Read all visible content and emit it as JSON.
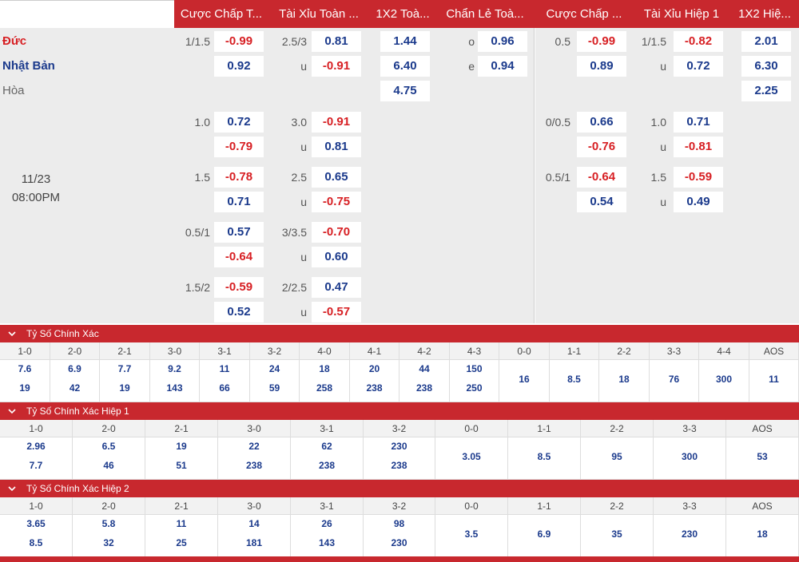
{
  "header": {
    "left": [
      "Cược Chấp T...",
      "Tài Xỉu Toàn ...",
      "1X2 Toà...",
      "Chẩn Lẻ Toà..."
    ],
    "right": [
      "Cược Chấp ...",
      "Tài Xỉu Hiệp 1",
      "1X2 Hiệ..."
    ]
  },
  "teams": {
    "home": "Đức",
    "away": "Nhật Bản",
    "draw": "Hòa"
  },
  "match": {
    "date": "11/23",
    "time": "08:00PM"
  },
  "full_time": {
    "main": {
      "hdp_line": "1/1.5",
      "hdp_home": "-0.99",
      "hdp_away": "0.92",
      "ou_line": "2.5/3",
      "ou_over": "0.81",
      "ou_u": "u",
      "ou_under": "-0.91",
      "x12_home": "1.44",
      "x12_away": "6.40",
      "x12_draw": "4.75",
      "oe_o": "o",
      "oe_odd": "0.96",
      "oe_e": "e",
      "oe_even": "0.94"
    },
    "alt": [
      {
        "hdp_line": "1.0",
        "hdp_home": "0.72",
        "hdp_away": "-0.79",
        "ou_line": "3.0",
        "ou_over": "-0.91",
        "ou_u": "u",
        "ou_under": "0.81"
      },
      {
        "hdp_line": "1.5",
        "hdp_home": "-0.78",
        "hdp_away": "0.71",
        "ou_line": "2.5",
        "ou_over": "0.65",
        "ou_u": "u",
        "ou_under": "-0.75"
      },
      {
        "hdp_line": "0.5/1",
        "hdp_home": "0.57",
        "hdp_away": "-0.64",
        "ou_line": "3/3.5",
        "ou_over": "-0.70",
        "ou_u": "u",
        "ou_under": "0.60"
      },
      {
        "hdp_line": "1.5/2",
        "hdp_home": "-0.59",
        "hdp_away": "0.52",
        "ou_line": "2/2.5",
        "ou_over": "0.47",
        "ou_u": "u",
        "ou_under": "-0.57"
      }
    ]
  },
  "first_half": {
    "main": {
      "hdp_line": "0.5",
      "hdp_home": "-0.99",
      "hdp_away": "0.89",
      "ou_line": "1/1.5",
      "ou_over": "-0.82",
      "ou_u": "u",
      "ou_under": "0.72",
      "x12_home": "2.01",
      "x12_away": "6.30",
      "x12_draw": "2.25"
    },
    "alt": [
      {
        "hdp_line": "0/0.5",
        "hdp_home": "0.66",
        "hdp_away": "-0.76",
        "ou_line": "1.0",
        "ou_over": "0.71",
        "ou_u": "u",
        "ou_under": "-0.81"
      },
      {
        "hdp_line": "0.5/1",
        "hdp_home": "-0.64",
        "hdp_away": "0.54",
        "ou_line": "1.5",
        "ou_over": "-0.59",
        "ou_u": "u",
        "ou_under": "0.49"
      }
    ]
  },
  "sections": [
    {
      "title": "Tỷ Số Chính Xác",
      "cols": [
        {
          "score": "1-0",
          "v": [
            "7.6",
            "19"
          ]
        },
        {
          "score": "2-0",
          "v": [
            "6.9",
            "42"
          ]
        },
        {
          "score": "2-1",
          "v": [
            "7.7",
            "19"
          ]
        },
        {
          "score": "3-0",
          "v": [
            "9.2",
            "143"
          ]
        },
        {
          "score": "3-1",
          "v": [
            "11",
            "66"
          ]
        },
        {
          "score": "3-2",
          "v": [
            "24",
            "59"
          ]
        },
        {
          "score": "4-0",
          "v": [
            "18",
            "258"
          ]
        },
        {
          "score": "4-1",
          "v": [
            "20",
            "238"
          ]
        },
        {
          "score": "4-2",
          "v": [
            "44",
            "238"
          ]
        },
        {
          "score": "4-3",
          "v": [
            "150",
            "250"
          ]
        },
        {
          "score": "0-0",
          "v": [
            "16"
          ]
        },
        {
          "score": "1-1",
          "v": [
            "8.5"
          ]
        },
        {
          "score": "2-2",
          "v": [
            "18"
          ]
        },
        {
          "score": "3-3",
          "v": [
            "76"
          ]
        },
        {
          "score": "4-4",
          "v": [
            "300"
          ]
        },
        {
          "score": "AOS",
          "v": [
            "11"
          ]
        }
      ]
    },
    {
      "title": "Tỷ Số Chính Xác Hiệp 1",
      "cols": [
        {
          "score": "1-0",
          "v": [
            "2.96",
            "7.7"
          ]
        },
        {
          "score": "2-0",
          "v": [
            "6.5",
            "46"
          ]
        },
        {
          "score": "2-1",
          "v": [
            "19",
            "51"
          ]
        },
        {
          "score": "3-0",
          "v": [
            "22",
            "238"
          ]
        },
        {
          "score": "3-1",
          "v": [
            "62",
            "238"
          ]
        },
        {
          "score": "3-2",
          "v": [
            "230",
            "238"
          ]
        },
        {
          "score": "0-0",
          "v": [
            "3.05"
          ]
        },
        {
          "score": "1-1",
          "v": [
            "8.5"
          ]
        },
        {
          "score": "2-2",
          "v": [
            "95"
          ]
        },
        {
          "score": "3-3",
          "v": [
            "300"
          ]
        },
        {
          "score": "AOS",
          "v": [
            "53"
          ]
        }
      ]
    },
    {
      "title": "Tỷ Số Chính Xác Hiệp 2",
      "cols": [
        {
          "score": "1-0",
          "v": [
            "3.65",
            "8.5"
          ]
        },
        {
          "score": "2-0",
          "v": [
            "5.8",
            "32"
          ]
        },
        {
          "score": "2-1",
          "v": [
            "11",
            "25"
          ]
        },
        {
          "score": "3-0",
          "v": [
            "14",
            "181"
          ]
        },
        {
          "score": "3-1",
          "v": [
            "26",
            "143"
          ]
        },
        {
          "score": "3-2",
          "v": [
            "98",
            "230"
          ]
        },
        {
          "score": "0-0",
          "v": [
            "3.5"
          ]
        },
        {
          "score": "1-1",
          "v": [
            "6.9"
          ]
        },
        {
          "score": "2-2",
          "v": [
            "35"
          ]
        },
        {
          "score": "3-3",
          "v": [
            "230"
          ]
        },
        {
          "score": "AOS",
          "v": [
            "18"
          ]
        }
      ]
    }
  ],
  "icons": {
    "collapse": "chevron-down-icon"
  },
  "colors": {
    "header_red": "#c8282e",
    "odds_blue": "#1b3a8c",
    "odds_red": "#d71f23"
  }
}
